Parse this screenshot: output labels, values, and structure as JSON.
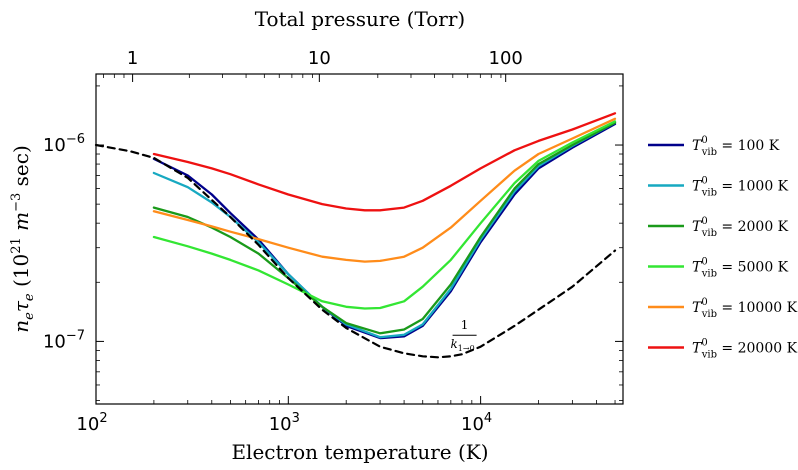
{
  "chart_data": {
    "type": "line",
    "title": "Total pressure (Torr)",
    "xlabel": "Electron temperature (K)",
    "ylabel": "n_e τ_e (10^21 m^-3 sec)",
    "xscale": "log",
    "yscale": "log",
    "xlim": [
      100,
      55000
    ],
    "ylim": [
      4.8e-08,
      2.3e-06
    ],
    "x_ticks": [
      {
        "value": 100,
        "label": "10",
        "exp": "2"
      },
      {
        "value": 1000,
        "label": "10",
        "exp": "3"
      },
      {
        "value": 10000,
        "label": "10",
        "exp": "4"
      }
    ],
    "y_ticks": [
      {
        "value": 1e-06,
        "label": "10",
        "exp": "−6"
      },
      {
        "value": 1e-07,
        "label": "10",
        "exp": "−7"
      }
    ],
    "top_axis": {
      "label": "Total pressure (Torr)",
      "ticks": [
        {
          "label": "1",
          "x_equiv": 155
        },
        {
          "label": "10",
          "x_equiv": 1450
        },
        {
          "label": "100",
          "x_equiv": 13500
        }
      ]
    },
    "grid": false,
    "legend_position": "right",
    "series": [
      {
        "name": "T_vib^0 = 100 K",
        "legend_main": "T",
        "legend_sup": "0",
        "legend_sub": "vib",
        "legend_value": " = 100 K",
        "color": "#00008b",
        "x": [
          200,
          300,
          400,
          500,
          700,
          1000,
          1500,
          2000,
          3000,
          4000,
          5000,
          7000,
          10000,
          15000,
          20000,
          30000,
          50000
        ],
        "y": [
          8.5e-07,
          7e-07,
          5.6e-07,
          4.5e-07,
          3.3e-07,
          2.2e-07,
          1.5e-07,
          1.2e-07,
          1.04e-07,
          1.06e-07,
          1.2e-07,
          1.8e-07,
          3.2e-07,
          5.6e-07,
          7.6e-07,
          9.7e-07,
          1.28e-06
        ]
      },
      {
        "name": "T_vib^0 = 1000 K",
        "legend_main": "T",
        "legend_sup": "0",
        "legend_sub": "vib",
        "legend_value": " = 1000 K",
        "color": "#17a9c1",
        "x": [
          200,
          300,
          400,
          500,
          700,
          1000,
          1500,
          2000,
          3000,
          4000,
          5000,
          7000,
          10000,
          15000,
          20000,
          30000,
          50000
        ],
        "y": [
          7.2e-07,
          6.1e-07,
          5.1e-07,
          4.3e-07,
          3.2e-07,
          2.2e-07,
          1.5e-07,
          1.22e-07,
          1.05e-07,
          1.08e-07,
          1.22e-07,
          1.85e-07,
          3.3e-07,
          5.8e-07,
          7.8e-07,
          9.9e-07,
          1.3e-06
        ]
      },
      {
        "name": "T_vib^0 = 2000 K",
        "legend_main": "T",
        "legend_sup": "0",
        "legend_sub": "vib",
        "legend_value": " = 2000 K",
        "color": "#1a9a1a",
        "x": [
          200,
          300,
          400,
          500,
          700,
          1000,
          1500,
          2000,
          3000,
          4000,
          5000,
          7000,
          10000,
          15000,
          20000,
          30000,
          50000
        ],
        "y": [
          4.8e-07,
          4.3e-07,
          3.8e-07,
          3.4e-07,
          2.8e-07,
          2.1e-07,
          1.5e-07,
          1.24e-07,
          1.1e-07,
          1.15e-07,
          1.3e-07,
          1.95e-07,
          3.4e-07,
          6e-07,
          8e-07,
          1e-06,
          1.3e-06
        ]
      },
      {
        "name": "T_vib^0 = 5000 K",
        "legend_main": "T",
        "legend_sup": "0",
        "legend_sub": "vib",
        "legend_value": " = 5000 K",
        "color": "#33e633",
        "x": [
          200,
          300,
          400,
          500,
          700,
          1000,
          1500,
          2000,
          2500,
          3000,
          4000,
          5000,
          7000,
          10000,
          15000,
          20000,
          30000,
          50000
        ],
        "y": [
          3.4e-07,
          3.05e-07,
          2.8e-07,
          2.6e-07,
          2.3e-07,
          1.95e-07,
          1.6e-07,
          1.5e-07,
          1.47e-07,
          1.48e-07,
          1.6e-07,
          1.9e-07,
          2.6e-07,
          4e-07,
          6.4e-07,
          8.3e-07,
          1.03e-06,
          1.32e-06
        ]
      },
      {
        "name": "T_vib^0 = 10000 K",
        "legend_main": "T",
        "legend_sup": "0",
        "legend_sub": "vib",
        "legend_value": " = 10000 K",
        "color": "#ff8c1a",
        "x": [
          200,
          300,
          400,
          500,
          700,
          1000,
          1500,
          2000,
          2500,
          3000,
          4000,
          5000,
          7000,
          10000,
          15000,
          20000,
          30000,
          50000
        ],
        "y": [
          4.6e-07,
          4.15e-07,
          3.85e-07,
          3.62e-07,
          3.32e-07,
          3e-07,
          2.7e-07,
          2.6e-07,
          2.55e-07,
          2.57e-07,
          2.7e-07,
          3e-07,
          3.8e-07,
          5.2e-07,
          7.4e-07,
          9e-07,
          1.08e-06,
          1.36e-06
        ]
      },
      {
        "name": "T_vib^0 = 20000 K",
        "legend_main": "T",
        "legend_sup": "0",
        "legend_sub": "vib",
        "legend_value": " = 20000 K",
        "color": "#ee1111",
        "x": [
          200,
          300,
          400,
          500,
          700,
          1000,
          1500,
          2000,
          2500,
          3000,
          4000,
          5000,
          7000,
          10000,
          15000,
          20000,
          30000,
          50000
        ],
        "y": [
          9e-07,
          8.2e-07,
          7.6e-07,
          7.1e-07,
          6.3e-07,
          5.6e-07,
          5e-07,
          4.75e-07,
          4.65e-07,
          4.65e-07,
          4.8e-07,
          5.2e-07,
          6.2e-07,
          7.6e-07,
          9.4e-07,
          1.05e-06,
          1.2e-06,
          1.45e-06
        ]
      },
      {
        "name": "1 / k_{1→0}",
        "color": "#000000",
        "dashed": true,
        "x": [
          100,
          150,
          200,
          300,
          500,
          700,
          1000,
          1500,
          2000,
          3000,
          4000,
          5000,
          6000,
          7000,
          8000,
          10000,
          15000,
          20000,
          30000,
          50000
        ],
        "y": [
          1e-06,
          9.3e-07,
          8.6e-07,
          6.8e-07,
          4.3e-07,
          3.1e-07,
          2.1e-07,
          1.45e-07,
          1.17e-07,
          9.4e-08,
          8.7e-08,
          8.4e-08,
          8.3e-08,
          8.4e-08,
          8.6e-08,
          9.4e-08,
          1.2e-07,
          1.45e-07,
          1.9e-07,
          2.9e-07
        ]
      }
    ],
    "annotations": [
      {
        "text_numerator": "1",
        "text_denominator_main": "k",
        "text_denominator_sub": "1→0",
        "near_x": 7500,
        "near_y": 1.05e-07
      }
    ]
  }
}
